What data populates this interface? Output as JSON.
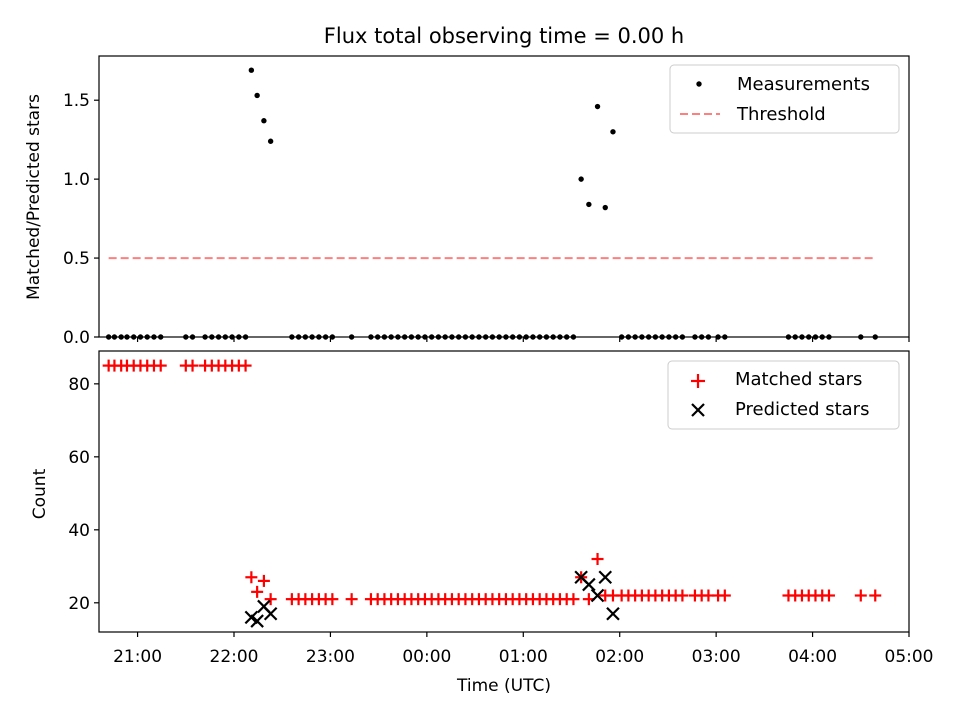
{
  "chart_data": {
    "title": "Flux total observing time = 0.00 h",
    "xlabel": "Time (UTC)",
    "x_unit": "hours since 00:00 UTC (negative = previous evening)",
    "xlim": [
      -3.4,
      5.0
    ],
    "x_ticks": [
      {
        "value": -3,
        "label": "21:00"
      },
      {
        "value": -2,
        "label": "22:00"
      },
      {
        "value": -1,
        "label": "23:00"
      },
      {
        "value": 0,
        "label": "00:00"
      },
      {
        "value": 1,
        "label": "01:00"
      },
      {
        "value": 2,
        "label": "02:00"
      },
      {
        "value": 3,
        "label": "03:00"
      },
      {
        "value": 4,
        "label": "04:00"
      },
      {
        "value": 5,
        "label": "05:00"
      }
    ],
    "panels": [
      {
        "type": "scatter",
        "ylabel": "Matched/Predicted stars",
        "ylim": [
          0.0,
          1.78
        ],
        "y_ticks": [
          {
            "value": 0.0,
            "label": "0.0"
          },
          {
            "value": 0.5,
            "label": "0.5"
          },
          {
            "value": 1.0,
            "label": "1.0"
          },
          {
            "value": 1.5,
            "label": "1.5"
          }
        ],
        "legend": {
          "position": "top-right",
          "entries": [
            "Measurements",
            "Threshold"
          ]
        },
        "series": [
          {
            "name": "Measurements",
            "marker": "dot",
            "color": "#000000",
            "points": [
              [
                -3.3,
                0
              ],
              [
                -3.24,
                0
              ],
              [
                -3.17,
                0
              ],
              [
                -3.11,
                0
              ],
              [
                -3.04,
                0
              ],
              [
                -2.97,
                0
              ],
              [
                -2.9,
                0
              ],
              [
                -2.83,
                0
              ],
              [
                -2.76,
                0
              ],
              [
                -2.5,
                0
              ],
              [
                -2.43,
                0
              ],
              [
                -2.3,
                0
              ],
              [
                -2.23,
                0
              ],
              [
                -2.16,
                0
              ],
              [
                -2.09,
                0
              ],
              [
                -2.02,
                0
              ],
              [
                -1.95,
                0
              ],
              [
                -1.88,
                0
              ],
              [
                -1.82,
                1.69
              ],
              [
                -1.76,
                1.53
              ],
              [
                -1.69,
                1.37
              ],
              [
                -1.62,
                1.24
              ],
              [
                -1.4,
                0
              ],
              [
                -1.33,
                0
              ],
              [
                -1.26,
                0
              ],
              [
                -1.19,
                0
              ],
              [
                -1.12,
                0
              ],
              [
                -1.05,
                0
              ],
              [
                -0.98,
                0
              ],
              [
                -0.78,
                0
              ],
              [
                -0.58,
                0
              ],
              [
                -0.51,
                0
              ],
              [
                -0.44,
                0
              ],
              [
                -0.37,
                0
              ],
              [
                -0.3,
                0
              ],
              [
                -0.23,
                0
              ],
              [
                -0.16,
                0
              ],
              [
                -0.09,
                0
              ],
              [
                -0.02,
                0
              ],
              [
                0.05,
                0
              ],
              [
                0.12,
                0
              ],
              [
                0.19,
                0
              ],
              [
                0.26,
                0
              ],
              [
                0.33,
                0
              ],
              [
                0.4,
                0
              ],
              [
                0.47,
                0
              ],
              [
                0.54,
                0
              ],
              [
                0.61,
                0
              ],
              [
                0.68,
                0
              ],
              [
                0.75,
                0
              ],
              [
                0.82,
                0
              ],
              [
                0.89,
                0
              ],
              [
                0.96,
                0
              ],
              [
                1.03,
                0
              ],
              [
                1.1,
                0
              ],
              [
                1.17,
                0
              ],
              [
                1.24,
                0
              ],
              [
                1.31,
                0
              ],
              [
                1.38,
                0
              ],
              [
                1.45,
                0
              ],
              [
                1.52,
                0
              ],
              [
                1.6,
                1.0
              ],
              [
                1.68,
                0.84
              ],
              [
                1.77,
                1.46
              ],
              [
                1.85,
                0.82
              ],
              [
                1.93,
                1.3
              ],
              [
                2.02,
                0
              ],
              [
                2.09,
                0
              ],
              [
                2.16,
                0
              ],
              [
                2.23,
                0
              ],
              [
                2.3,
                0
              ],
              [
                2.37,
                0
              ],
              [
                2.44,
                0
              ],
              [
                2.51,
                0
              ],
              [
                2.58,
                0
              ],
              [
                2.65,
                0
              ],
              [
                2.78,
                0
              ],
              [
                2.85,
                0
              ],
              [
                2.92,
                0
              ],
              [
                3.02,
                0
              ],
              [
                3.09,
                0
              ],
              [
                3.75,
                0
              ],
              [
                3.82,
                0
              ],
              [
                3.89,
                0
              ],
              [
                3.96,
                0
              ],
              [
                4.03,
                0
              ],
              [
                4.1,
                0
              ],
              [
                4.17,
                0
              ],
              [
                4.5,
                0
              ],
              [
                4.65,
                0
              ]
            ]
          },
          {
            "name": "Threshold",
            "type": "line",
            "style": "dashed",
            "color": "#ff7f7f",
            "x": [
              -3.3,
              4.65
            ],
            "y": [
              0.5,
              0.5
            ]
          }
        ]
      },
      {
        "type": "scatter",
        "ylabel": "Count",
        "ylim": [
          12,
          89
        ],
        "y_ticks": [
          {
            "value": 20,
            "label": "20"
          },
          {
            "value": 40,
            "label": "40"
          },
          {
            "value": 60,
            "label": "60"
          },
          {
            "value": 80,
            "label": "80"
          }
        ],
        "legend": {
          "position": "top-right",
          "entries": [
            "Matched stars",
            "Predicted stars"
          ]
        },
        "series": [
          {
            "name": "Matched stars",
            "marker": "plus",
            "color": "#ff0000",
            "points": [
              [
                -3.3,
                85
              ],
              [
                -3.24,
                85
              ],
              [
                -3.17,
                85
              ],
              [
                -3.11,
                85
              ],
              [
                -3.04,
                85
              ],
              [
                -2.97,
                85
              ],
              [
                -2.9,
                85
              ],
              [
                -2.83,
                85
              ],
              [
                -2.76,
                85
              ],
              [
                -2.5,
                85
              ],
              [
                -2.43,
                85
              ],
              [
                -2.3,
                85
              ],
              [
                -2.23,
                85
              ],
              [
                -2.16,
                85
              ],
              [
                -2.09,
                85
              ],
              [
                -2.02,
                85
              ],
              [
                -1.95,
                85
              ],
              [
                -1.88,
                85
              ],
              [
                -1.82,
                27
              ],
              [
                -1.76,
                23
              ],
              [
                -1.69,
                26
              ],
              [
                -1.62,
                21
              ],
              [
                -1.4,
                21
              ],
              [
                -1.33,
                21
              ],
              [
                -1.26,
                21
              ],
              [
                -1.19,
                21
              ],
              [
                -1.12,
                21
              ],
              [
                -1.05,
                21
              ],
              [
                -0.98,
                21
              ],
              [
                -0.78,
                21
              ],
              [
                -0.58,
                21
              ],
              [
                -0.51,
                21
              ],
              [
                -0.44,
                21
              ],
              [
                -0.37,
                21
              ],
              [
                -0.3,
                21
              ],
              [
                -0.23,
                21
              ],
              [
                -0.16,
                21
              ],
              [
                -0.09,
                21
              ],
              [
                -0.02,
                21
              ],
              [
                0.05,
                21
              ],
              [
                0.12,
                21
              ],
              [
                0.19,
                21
              ],
              [
                0.26,
                21
              ],
              [
                0.33,
                21
              ],
              [
                0.4,
                21
              ],
              [
                0.47,
                21
              ],
              [
                0.54,
                21
              ],
              [
                0.61,
                21
              ],
              [
                0.68,
                21
              ],
              [
                0.75,
                21
              ],
              [
                0.82,
                21
              ],
              [
                0.89,
                21
              ],
              [
                0.96,
                21
              ],
              [
                1.03,
                21
              ],
              [
                1.1,
                21
              ],
              [
                1.17,
                21
              ],
              [
                1.24,
                21
              ],
              [
                1.31,
                21
              ],
              [
                1.38,
                21
              ],
              [
                1.45,
                21
              ],
              [
                1.52,
                21
              ],
              [
                1.6,
                27
              ],
              [
                1.68,
                21
              ],
              [
                1.77,
                32
              ],
              [
                1.85,
                22
              ],
              [
                1.93,
                22
              ],
              [
                2.02,
                22
              ],
              [
                2.09,
                22
              ],
              [
                2.16,
                22
              ],
              [
                2.23,
                22
              ],
              [
                2.3,
                22
              ],
              [
                2.37,
                22
              ],
              [
                2.44,
                22
              ],
              [
                2.51,
                22
              ],
              [
                2.58,
                22
              ],
              [
                2.65,
                22
              ],
              [
                2.78,
                22
              ],
              [
                2.85,
                22
              ],
              [
                2.92,
                22
              ],
              [
                3.02,
                22
              ],
              [
                3.09,
                22
              ],
              [
                3.75,
                22
              ],
              [
                3.82,
                22
              ],
              [
                3.89,
                22
              ],
              [
                3.96,
                22
              ],
              [
                4.03,
                22
              ],
              [
                4.1,
                22
              ],
              [
                4.17,
                22
              ],
              [
                4.5,
                22
              ],
              [
                4.65,
                22
              ]
            ]
          },
          {
            "name": "Predicted stars",
            "marker": "x",
            "color": "#000000",
            "points": [
              [
                -1.82,
                16
              ],
              [
                -1.76,
                15
              ],
              [
                -1.69,
                19
              ],
              [
                -1.62,
                17
              ],
              [
                1.6,
                27
              ],
              [
                1.68,
                25
              ],
              [
                1.77,
                22
              ],
              [
                1.85,
                27
              ],
              [
                1.93,
                17
              ]
            ]
          }
        ]
      }
    ]
  }
}
